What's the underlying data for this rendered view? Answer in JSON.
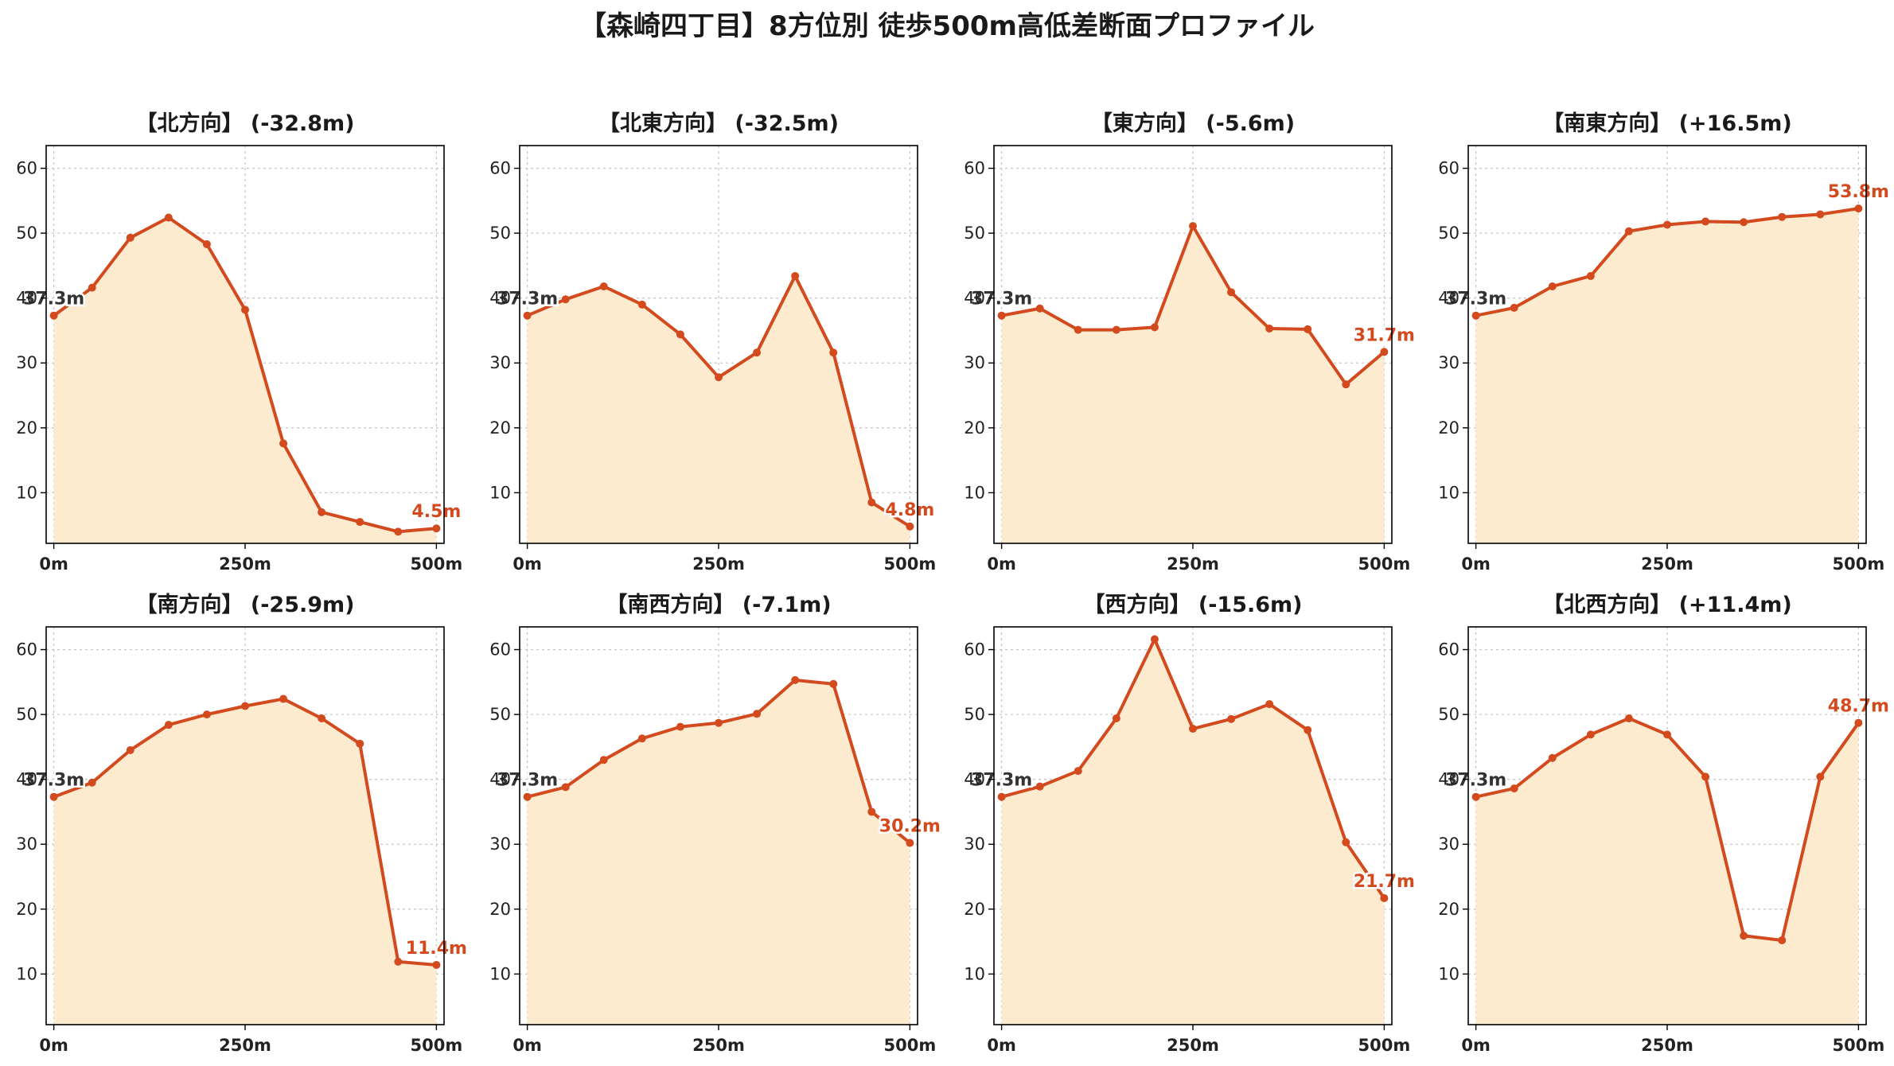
{
  "suptitle": "【森崎四丁目】8方位別 徒歩500m高低差断面プロファイル",
  "colors": {
    "line": "#d24a1e",
    "fill": "#fdebd0",
    "end_label": "#d24a1e",
    "start_label": "#333333",
    "grid": "#c8c8c8"
  },
  "chart_data": [
    {
      "type": "area",
      "title": "【北方向】 (-32.8m)",
      "x": [
        0,
        50,
        100,
        150,
        200,
        250,
        300,
        350,
        400,
        450,
        500
      ],
      "values": [
        37.3,
        41.6,
        49.3,
        52.4,
        48.3,
        38.2,
        17.6,
        7.0,
        5.5,
        4.0,
        4.5
      ],
      "start_label": "37.3m",
      "end_label": "4.5m",
      "xticks": [
        0,
        250,
        500
      ],
      "xtick_labels": [
        "0m",
        "250m",
        "500m"
      ],
      "yticks": [
        10,
        20,
        30,
        40,
        50,
        60
      ],
      "ytick_labels": [
        "10",
        "20",
        "30",
        "40",
        "50",
        "60"
      ],
      "xlim": [
        -10,
        510
      ],
      "ylim": [
        2.2,
        63.5
      ],
      "grid": true
    },
    {
      "type": "area",
      "title": "【北東方向】 (-32.5m)",
      "x": [
        0,
        50,
        100,
        150,
        200,
        250,
        300,
        350,
        400,
        450,
        500
      ],
      "values": [
        37.3,
        39.8,
        41.8,
        39.0,
        34.4,
        27.8,
        31.6,
        43.4,
        31.6,
        8.5,
        4.8
      ],
      "start_label": "37.3m",
      "end_label": "4.8m",
      "xticks": [
        0,
        250,
        500
      ],
      "xtick_labels": [
        "0m",
        "250m",
        "500m"
      ],
      "yticks": [
        10,
        20,
        30,
        40,
        50,
        60
      ],
      "ytick_labels": [
        "10",
        "20",
        "30",
        "40",
        "50",
        "60"
      ],
      "xlim": [
        -10,
        510
      ],
      "ylim": [
        2.2,
        63.5
      ],
      "grid": true
    },
    {
      "type": "area",
      "title": "【東方向】 (-5.6m)",
      "x": [
        0,
        50,
        100,
        150,
        200,
        250,
        300,
        350,
        400,
        450,
        500
      ],
      "values": [
        37.3,
        38.4,
        35.1,
        35.1,
        35.5,
        51.1,
        40.9,
        35.3,
        35.2,
        26.7,
        31.7
      ],
      "start_label": "37.3m",
      "end_label": "31.7m",
      "xticks": [
        0,
        250,
        500
      ],
      "xtick_labels": [
        "0m",
        "250m",
        "500m"
      ],
      "yticks": [
        10,
        20,
        30,
        40,
        50,
        60
      ],
      "ytick_labels": [
        "10",
        "20",
        "30",
        "40",
        "50",
        "60"
      ],
      "xlim": [
        -10,
        510
      ],
      "ylim": [
        2.2,
        63.5
      ],
      "grid": true
    },
    {
      "type": "area",
      "title": "【南東方向】 (+16.5m)",
      "x": [
        0,
        50,
        100,
        150,
        200,
        250,
        300,
        350,
        400,
        450,
        500
      ],
      "values": [
        37.3,
        38.5,
        41.8,
        43.4,
        50.3,
        51.3,
        51.8,
        51.7,
        52.5,
        52.9,
        53.8
      ],
      "start_label": "37.3m",
      "end_label": "53.8m",
      "xticks": [
        0,
        250,
        500
      ],
      "xtick_labels": [
        "0m",
        "250m",
        "500m"
      ],
      "yticks": [
        10,
        20,
        30,
        40,
        50,
        60
      ],
      "ytick_labels": [
        "10",
        "20",
        "30",
        "40",
        "50",
        "60"
      ],
      "xlim": [
        -10,
        510
      ],
      "ylim": [
        2.2,
        63.5
      ],
      "grid": true
    },
    {
      "type": "area",
      "title": "【南方向】 (-25.9m)",
      "x": [
        0,
        50,
        100,
        150,
        200,
        250,
        300,
        350,
        400,
        450,
        500
      ],
      "values": [
        37.3,
        39.5,
        44.5,
        48.4,
        50.0,
        51.3,
        52.4,
        49.4,
        45.5,
        11.9,
        11.4
      ],
      "start_label": "37.3m",
      "end_label": "11.4m",
      "xticks": [
        0,
        250,
        500
      ],
      "xtick_labels": [
        "0m",
        "250m",
        "500m"
      ],
      "yticks": [
        10,
        20,
        30,
        40,
        50,
        60
      ],
      "ytick_labels": [
        "10",
        "20",
        "30",
        "40",
        "50",
        "60"
      ],
      "xlim": [
        -10,
        510
      ],
      "ylim": [
        2.2,
        63.5
      ],
      "grid": true
    },
    {
      "type": "area",
      "title": "【南西方向】 (-7.1m)",
      "x": [
        0,
        50,
        100,
        150,
        200,
        250,
        300,
        350,
        400,
        450,
        500
      ],
      "values": [
        37.3,
        38.8,
        43.0,
        46.3,
        48.1,
        48.7,
        50.1,
        55.3,
        54.7,
        35.0,
        30.2
      ],
      "start_label": "37.3m",
      "end_label": "30.2m",
      "xticks": [
        0,
        250,
        500
      ],
      "xtick_labels": [
        "0m",
        "250m",
        "500m"
      ],
      "yticks": [
        10,
        20,
        30,
        40,
        50,
        60
      ],
      "ytick_labels": [
        "10",
        "20",
        "30",
        "40",
        "50",
        "60"
      ],
      "xlim": [
        -10,
        510
      ],
      "ylim": [
        2.2,
        63.5
      ],
      "grid": true
    },
    {
      "type": "area",
      "title": "【西方向】 (-15.6m)",
      "x": [
        0,
        50,
        100,
        150,
        200,
        250,
        300,
        350,
        400,
        450,
        500
      ],
      "values": [
        37.3,
        38.9,
        41.3,
        49.4,
        61.6,
        47.8,
        49.3,
        51.6,
        47.6,
        30.3,
        21.7
      ],
      "start_label": "37.3m",
      "end_label": "21.7m",
      "xticks": [
        0,
        250,
        500
      ],
      "xtick_labels": [
        "0m",
        "250m",
        "500m"
      ],
      "yticks": [
        10,
        20,
        30,
        40,
        50,
        60
      ],
      "ytick_labels": [
        "10",
        "20",
        "30",
        "40",
        "50",
        "60"
      ],
      "xlim": [
        -10,
        510
      ],
      "ylim": [
        2.2,
        63.5
      ],
      "grid": true
    },
    {
      "type": "area",
      "title": "【北西方向】 (+11.4m)",
      "x": [
        0,
        50,
        100,
        150,
        200,
        250,
        300,
        350,
        400,
        450,
        500
      ],
      "values": [
        37.3,
        38.6,
        43.3,
        46.9,
        49.4,
        46.9,
        40.4,
        15.9,
        15.2,
        40.4,
        48.7
      ],
      "start_label": "37.3m",
      "end_label": "48.7m",
      "xticks": [
        0,
        250,
        500
      ],
      "xtick_labels": [
        "0m",
        "250m",
        "500m"
      ],
      "yticks": [
        10,
        20,
        30,
        40,
        50,
        60
      ],
      "ytick_labels": [
        "10",
        "20",
        "30",
        "40",
        "50",
        "60"
      ],
      "xlim": [
        -10,
        510
      ],
      "ylim": [
        2.2,
        63.5
      ],
      "grid": true
    }
  ]
}
